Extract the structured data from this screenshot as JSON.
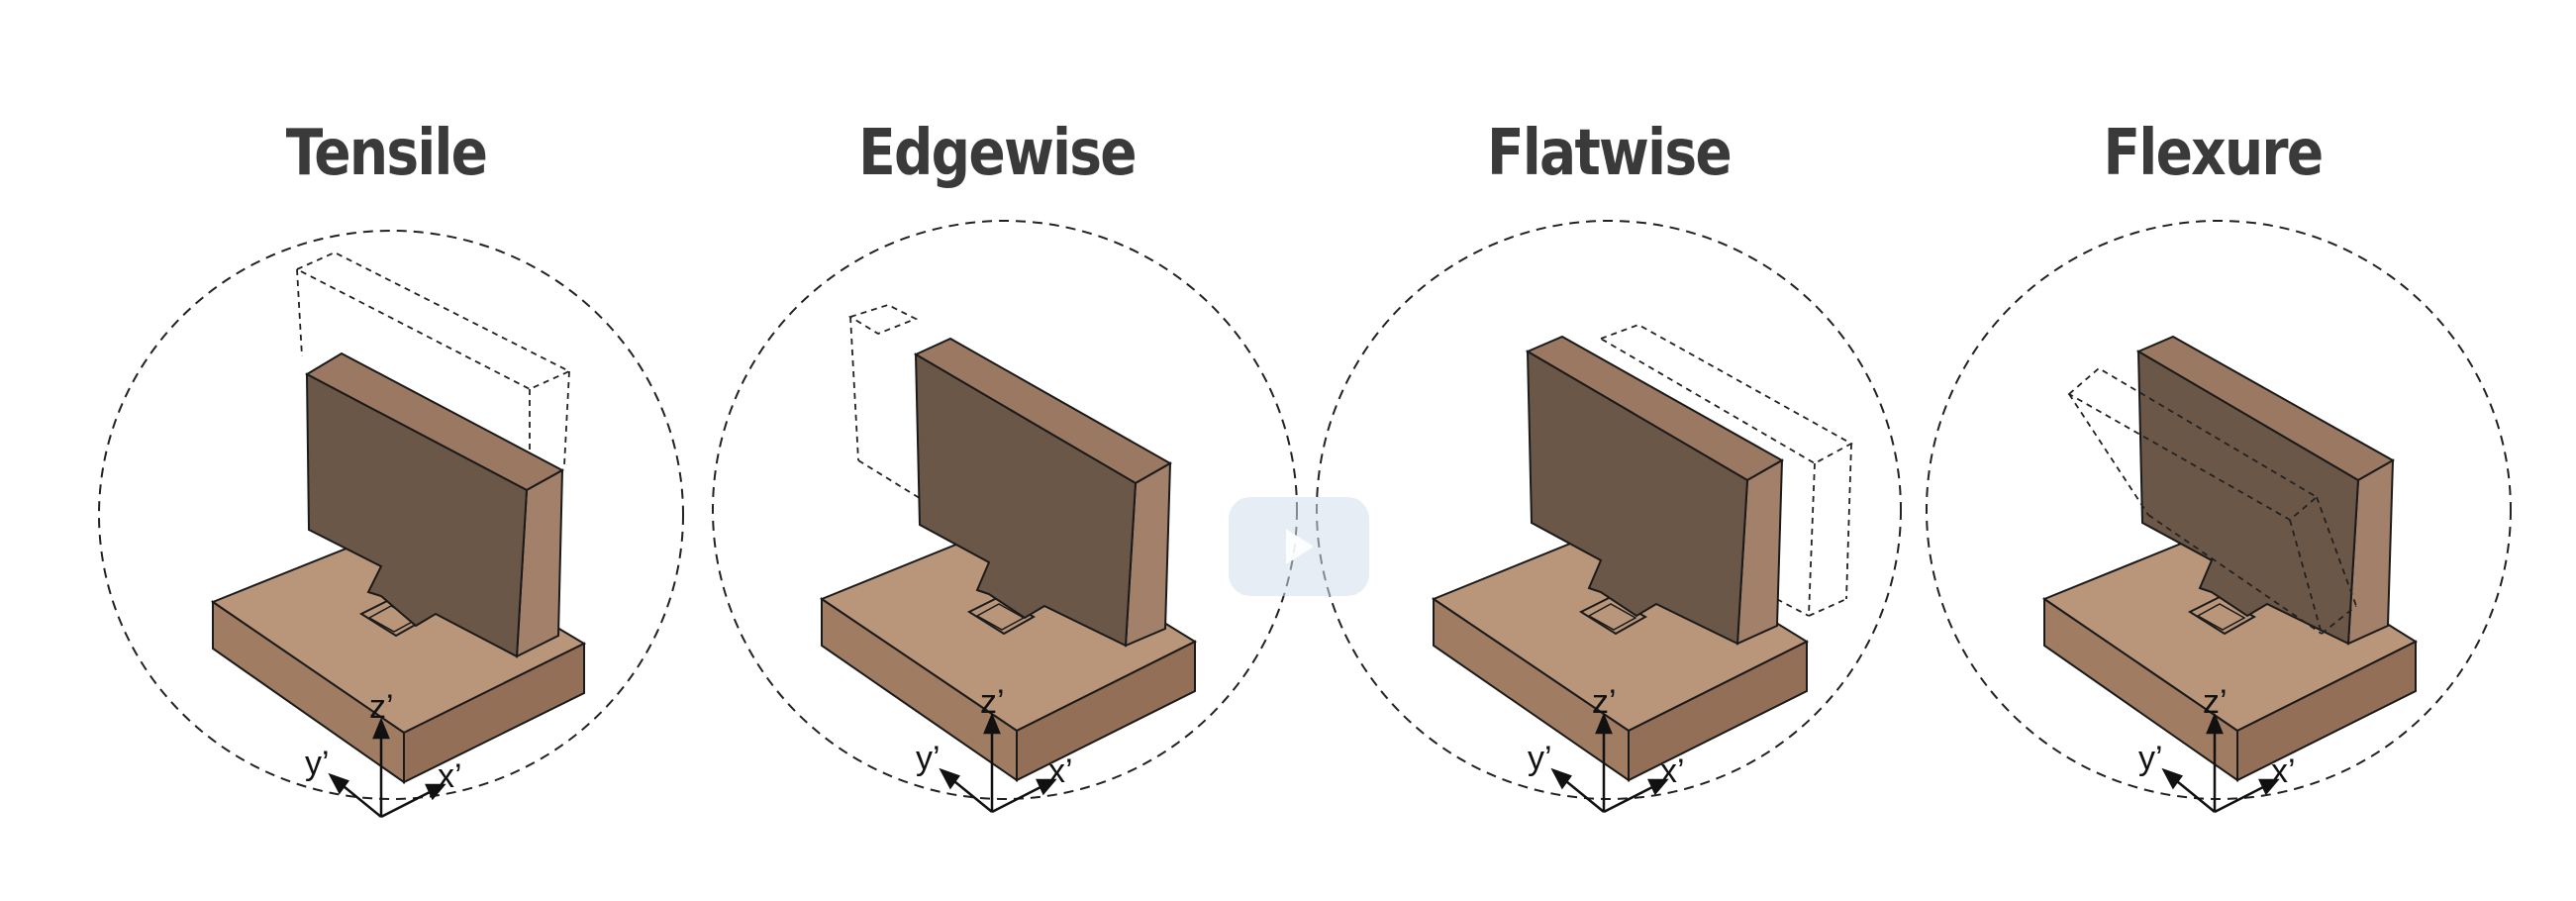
{
  "panels": [
    {
      "title": "Tensile",
      "axes": {
        "z": "z’",
        "y": "y’",
        "x": "x’"
      }
    },
    {
      "title": "Edgewise",
      "axes": {
        "z": "z’",
        "y": "y’",
        "x": "x’"
      }
    },
    {
      "title": "Flatwise",
      "axes": {
        "z": "z’",
        "y": "y’",
        "x": "x’"
      }
    },
    {
      "title": "Flexure",
      "axes": {
        "z": "z’",
        "y": "y’",
        "x": "x’"
      }
    }
  ],
  "colors": {
    "title": "#3a3a3a",
    "base_top": "#b9967a",
    "base_front": "#a07c62",
    "base_right": "#946f57",
    "specimen_face": "#6b5748",
    "specimen_side": "#a3806a",
    "specimen_top": "#9a7862",
    "outline": "#1a1a1a"
  },
  "icons": {
    "overlay": "play-button-icon"
  }
}
